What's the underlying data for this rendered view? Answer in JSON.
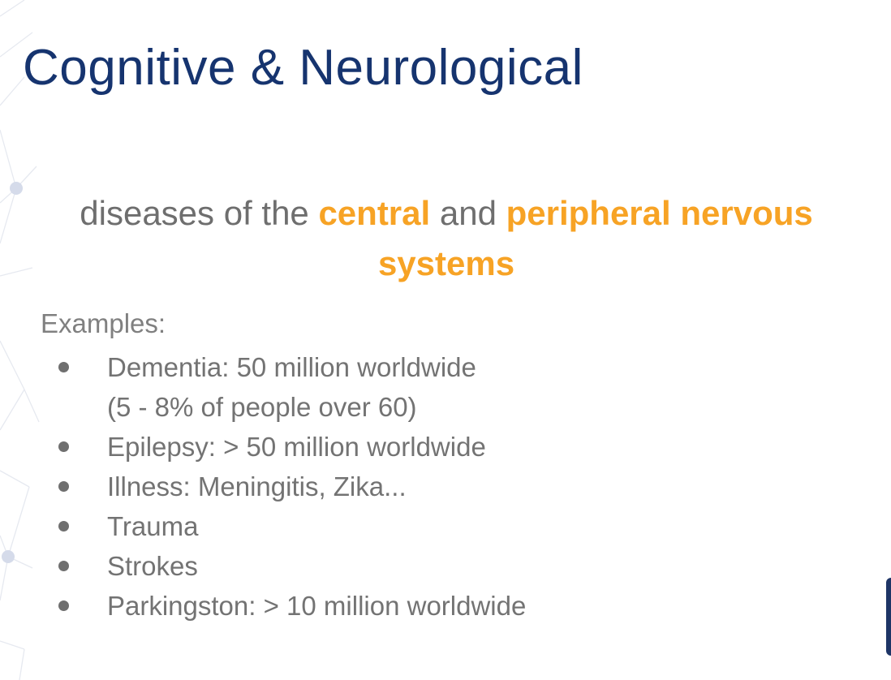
{
  "slide": {
    "title": "Cognitive & Neurological",
    "subtitle": {
      "part1": "diseases of the ",
      "highlight1": "central",
      "part2": " and ",
      "highlight2": "peripheral nervous systems"
    },
    "examples_label": "Examples:",
    "bullets": [
      {
        "text": "Dementia: 50 million worldwide",
        "sub": "(5 - 8% of people over 60)"
      },
      {
        "text": "Epilepsy: > 50 million worldwide"
      },
      {
        "text": "Illness: Meningitis, Zika..."
      },
      {
        "text": "Trauma"
      },
      {
        "text": "Strokes"
      },
      {
        "text": "Parkingston: > 10 million worldwide"
      }
    ]
  },
  "colors": {
    "title": "#16346f",
    "body_text": "#737373",
    "highlight": "#f7a325",
    "network_lines": "#e4e7ef",
    "network_nodes": "#d4daea"
  },
  "icons": [
    "network-decoration"
  ]
}
